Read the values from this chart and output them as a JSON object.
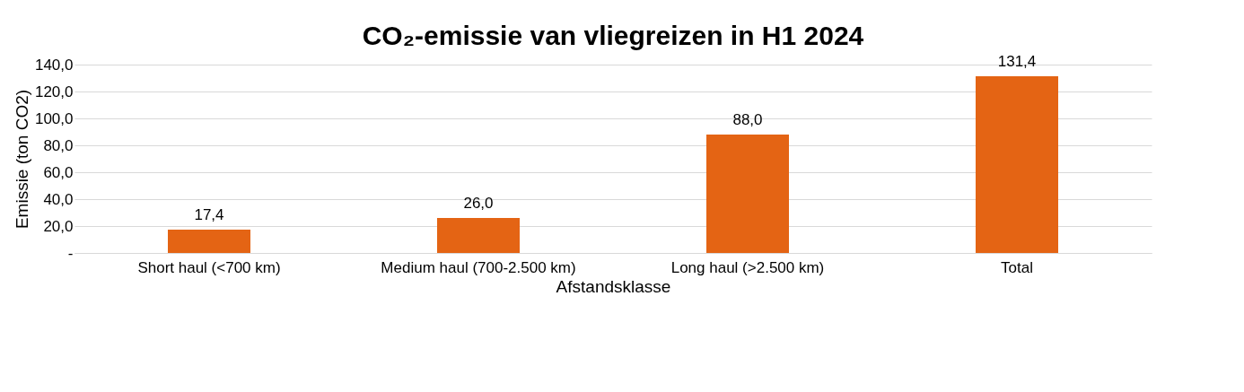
{
  "chart_data": {
    "type": "bar",
    "title": "CO₂-emissie van vliegreizen in H1 2024",
    "xlabel": "Afstandsklasse",
    "ylabel": "Emissie (ton CO2)",
    "categories": [
      "Short haul (<700 km)",
      "Medium haul (700-2.500 km)",
      "Long haul (>2.500 km)",
      "Total"
    ],
    "values": [
      17.4,
      26.0,
      88.0,
      131.4
    ],
    "value_labels": [
      "17,4",
      "26,0",
      "88,0",
      "131,4"
    ],
    "color": "#e46414",
    "ylim": [
      0,
      140
    ],
    "yticks": [
      {
        "value": 0,
        "label": "-"
      },
      {
        "value": 20,
        "label": "20,0"
      },
      {
        "value": 40,
        "label": "40,0"
      },
      {
        "value": 60,
        "label": "60,0"
      },
      {
        "value": 80,
        "label": "80,0"
      },
      {
        "value": 100,
        "label": "100,0"
      },
      {
        "value": 120,
        "label": "120,0"
      },
      {
        "value": 140,
        "label": "140,0"
      }
    ],
    "grid": "y"
  }
}
